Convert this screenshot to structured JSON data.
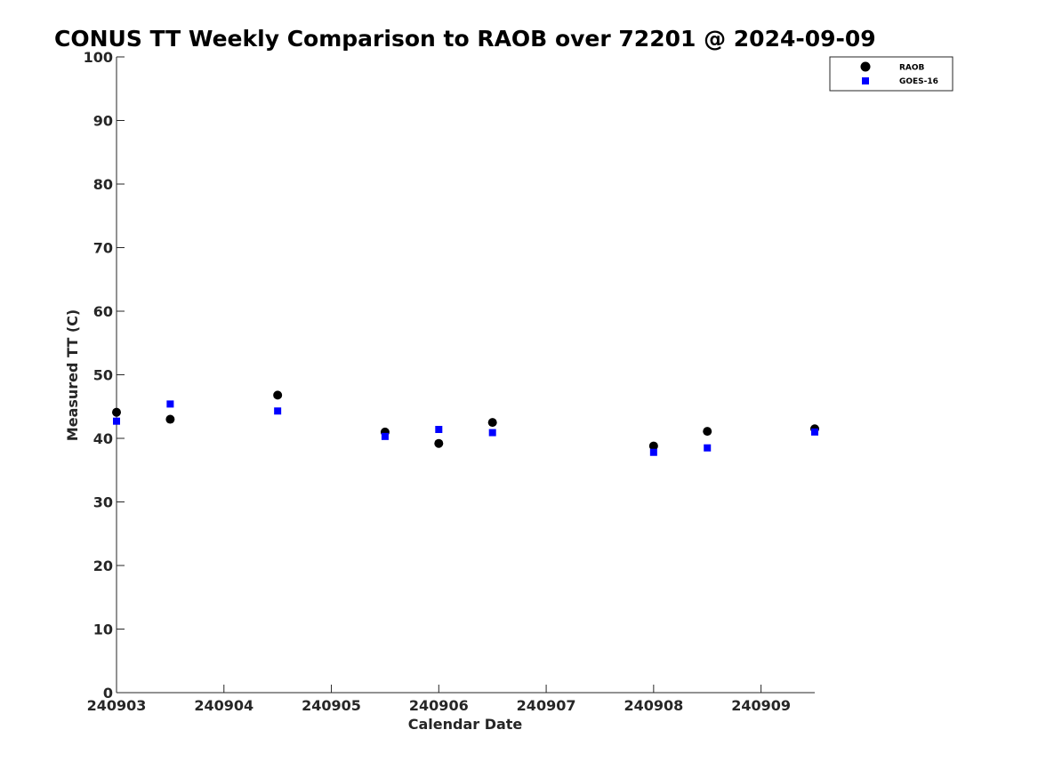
{
  "chart_data": {
    "type": "scatter",
    "title": "CONUS TT Weekly Comparison to RAOB over 72201 @ 2024-09-09",
    "xlabel": "Calendar Date",
    "ylabel": "Measured TT (C)",
    "xlim": [
      "2024-09-03T00:00",
      "2024-09-09T12:00"
    ],
    "ylim": [
      0,
      100
    ],
    "x_ticks": [
      "240903",
      "240904",
      "240905",
      "240906",
      "240907",
      "240908",
      "240909"
    ],
    "x_tick_dates": [
      "2024-09-03T00:00",
      "2024-09-04T00:00",
      "2024-09-05T00:00",
      "2024-09-06T00:00",
      "2024-09-07T00:00",
      "2024-09-08T00:00",
      "2024-09-09T00:00"
    ],
    "y_ticks": [
      "0",
      "10",
      "20",
      "30",
      "40",
      "50",
      "60",
      "70",
      "80",
      "90",
      "100"
    ],
    "grid": false,
    "legend_position": "top-right",
    "series": [
      {
        "name": "RAOB",
        "color": "#000000",
        "marker": "circle",
        "x": [
          "2024-09-03T00:00",
          "2024-09-03T12:00",
          "2024-09-04T12:00",
          "2024-09-05T12:00",
          "2024-09-06T00:00",
          "2024-09-06T12:00",
          "2024-09-08T00:00",
          "2024-09-08T12:00",
          "2024-09-09T12:00"
        ],
        "y": [
          44.1,
          43.0,
          46.8,
          41.0,
          39.2,
          42.5,
          38.8,
          41.1,
          41.5
        ]
      },
      {
        "name": "GOES-16",
        "color": "#0000ff",
        "marker": "square",
        "x": [
          "2024-09-03T00:00",
          "2024-09-03T12:00",
          "2024-09-04T12:00",
          "2024-09-05T12:00",
          "2024-09-06T00:00",
          "2024-09-06T12:00",
          "2024-09-08T00:00",
          "2024-09-08T12:00",
          "2024-09-09T12:00"
        ],
        "y": [
          42.7,
          45.4,
          44.3,
          40.3,
          41.4,
          40.9,
          37.8,
          38.5,
          41.0
        ]
      }
    ]
  }
}
